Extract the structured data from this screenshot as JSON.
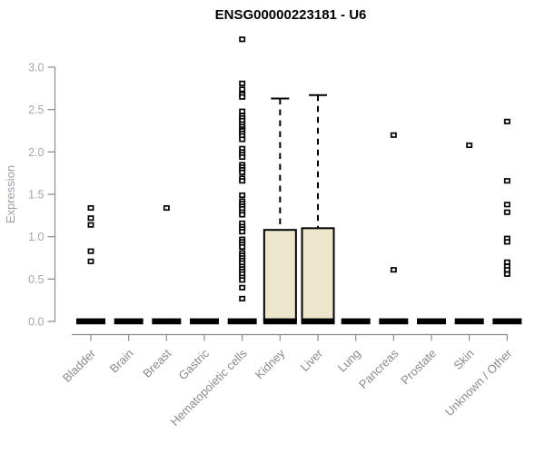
{
  "chart_data": {
    "type": "boxplot",
    "title": "ENSG00000223181 - U6",
    "ylabel": "Expression",
    "xlabel": "",
    "ylim": [
      0.0,
      3.0
    ],
    "yticks": [
      0.0,
      0.5,
      1.0,
      1.5,
      2.0,
      2.5,
      3.0
    ],
    "grid": false,
    "legend": "none",
    "categories": [
      "Bladder",
      "Brain",
      "Breast",
      "Gastric",
      "Hematopoietic cells",
      "Kidney",
      "Liver",
      "Lung",
      "Pancreas",
      "Prostate",
      "Skin",
      "Unknown / Other"
    ],
    "boxes": [
      {
        "category": "Bladder",
        "q1": 0,
        "median": 0,
        "q3": 0,
        "whisker_low": 0,
        "whisker_high": 0,
        "outliers": [
          1.34,
          1.22,
          1.14,
          0.83,
          0.71
        ]
      },
      {
        "category": "Brain",
        "q1": 0,
        "median": 0,
        "q3": 0,
        "whisker_low": 0,
        "whisker_high": 0,
        "outliers": []
      },
      {
        "category": "Breast",
        "q1": 0,
        "median": 0,
        "q3": 0,
        "whisker_low": 0,
        "whisker_high": 0,
        "outliers": [
          1.34
        ]
      },
      {
        "category": "Gastric",
        "q1": 0,
        "median": 0,
        "q3": 0,
        "whisker_low": 0,
        "whisker_high": 0,
        "outliers": []
      },
      {
        "category": "Hematopoietic cells",
        "q1": 0,
        "median": 0,
        "q3": 0,
        "whisker_low": 0,
        "whisker_high": 0,
        "outliers": [
          3.33,
          2.81,
          2.74,
          2.68,
          2.65,
          2.48,
          2.43,
          2.4,
          2.37,
          2.33,
          2.3,
          2.27,
          2.25,
          2.22,
          2.19,
          2.15,
          2.04,
          2.0,
          1.97,
          1.94,
          1.85,
          1.82,
          1.79,
          1.76,
          1.69,
          1.66,
          1.49,
          1.42,
          1.39,
          1.36,
          1.33,
          1.29,
          1.26,
          1.16,
          1.12,
          1.09,
          1.06,
          0.97,
          0.94,
          0.91,
          0.88,
          0.81,
          0.78,
          0.75,
          0.72,
          0.69,
          0.65,
          0.62,
          0.59,
          0.56,
          0.52,
          0.49,
          0.4,
          0.27
        ]
      },
      {
        "category": "Kidney",
        "q1": 0,
        "median": 0,
        "q3": 1.08,
        "whisker_low": 0,
        "whisker_high": 2.63,
        "outliers": []
      },
      {
        "category": "Liver",
        "q1": 0,
        "median": 0,
        "q3": 1.1,
        "whisker_low": 0,
        "whisker_high": 2.67,
        "outliers": []
      },
      {
        "category": "Lung",
        "q1": 0,
        "median": 0,
        "q3": 0,
        "whisker_low": 0,
        "whisker_high": 0,
        "outliers": []
      },
      {
        "category": "Pancreas",
        "q1": 0,
        "median": 0,
        "q3": 0,
        "whisker_low": 0,
        "whisker_high": 0,
        "outliers": [
          2.2,
          0.61
        ]
      },
      {
        "category": "Prostate",
        "q1": 0,
        "median": 0,
        "q3": 0,
        "whisker_low": 0,
        "whisker_high": 0,
        "outliers": []
      },
      {
        "category": "Skin",
        "q1": 0,
        "median": 0,
        "q3": 0,
        "whisker_low": 0,
        "whisker_high": 0,
        "outliers": [
          2.08
        ]
      },
      {
        "category": "Unknown / Other",
        "q1": 0,
        "median": 0,
        "q3": 0,
        "whisker_low": 0,
        "whisker_high": 0,
        "outliers": [
          2.36,
          1.66,
          1.38,
          1.29,
          0.98,
          0.94,
          0.7,
          0.65,
          0.61,
          0.56
        ]
      }
    ],
    "colors": {
      "box_fill": "#ece7cc",
      "box_stroke": "#000000",
      "median": "#000000",
      "outlier": "#000000",
      "axis": "#8a8a8a",
      "tick_label": "#a2a7ad",
      "category_label": "#8a8a8a",
      "ylabel_color": "#9aa0a6",
      "title_color": "#000000",
      "background": "#ffffff"
    }
  }
}
